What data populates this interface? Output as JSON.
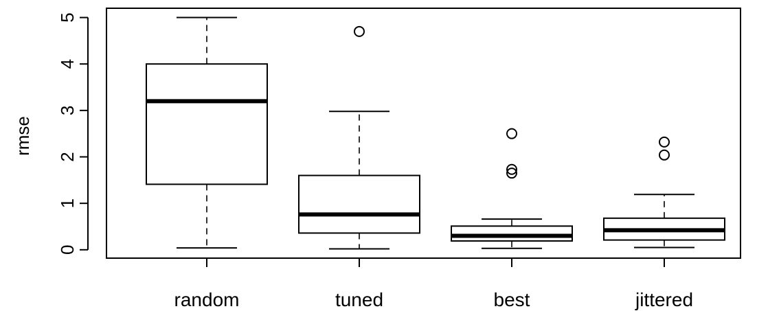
{
  "chart_data": {
    "type": "boxplot",
    "title": "",
    "xlabel": "",
    "ylabel": "rmse",
    "ylim": [
      -0.18,
      5.2
    ],
    "yticks": [
      0,
      1,
      2,
      3,
      4,
      5
    ],
    "ytick_labels": [
      "0",
      "1",
      "2",
      "3",
      "4",
      "5"
    ],
    "grid": false,
    "categories": [
      "random",
      "tuned",
      "best",
      "jittered"
    ],
    "boxes": [
      {
        "name": "random",
        "whisker_low": 0.04,
        "q1": 1.41,
        "median": 3.2,
        "q3": 4.0,
        "whisker_high": 5.0,
        "outliers": []
      },
      {
        "name": "tuned",
        "whisker_low": 0.02,
        "q1": 0.36,
        "median": 0.76,
        "q3": 1.6,
        "whisker_high": 2.98,
        "outliers": [
          4.7
        ]
      },
      {
        "name": "best",
        "whisker_low": 0.03,
        "q1": 0.19,
        "median": 0.3,
        "q3": 0.51,
        "whisker_high": 0.66,
        "outliers": [
          1.65,
          1.73,
          2.5
        ]
      },
      {
        "name": "jittered",
        "whisker_low": 0.05,
        "q1": 0.21,
        "median": 0.42,
        "q3": 0.68,
        "whisker_high": 1.19,
        "outliers": [
          2.04,
          2.32
        ]
      }
    ]
  }
}
